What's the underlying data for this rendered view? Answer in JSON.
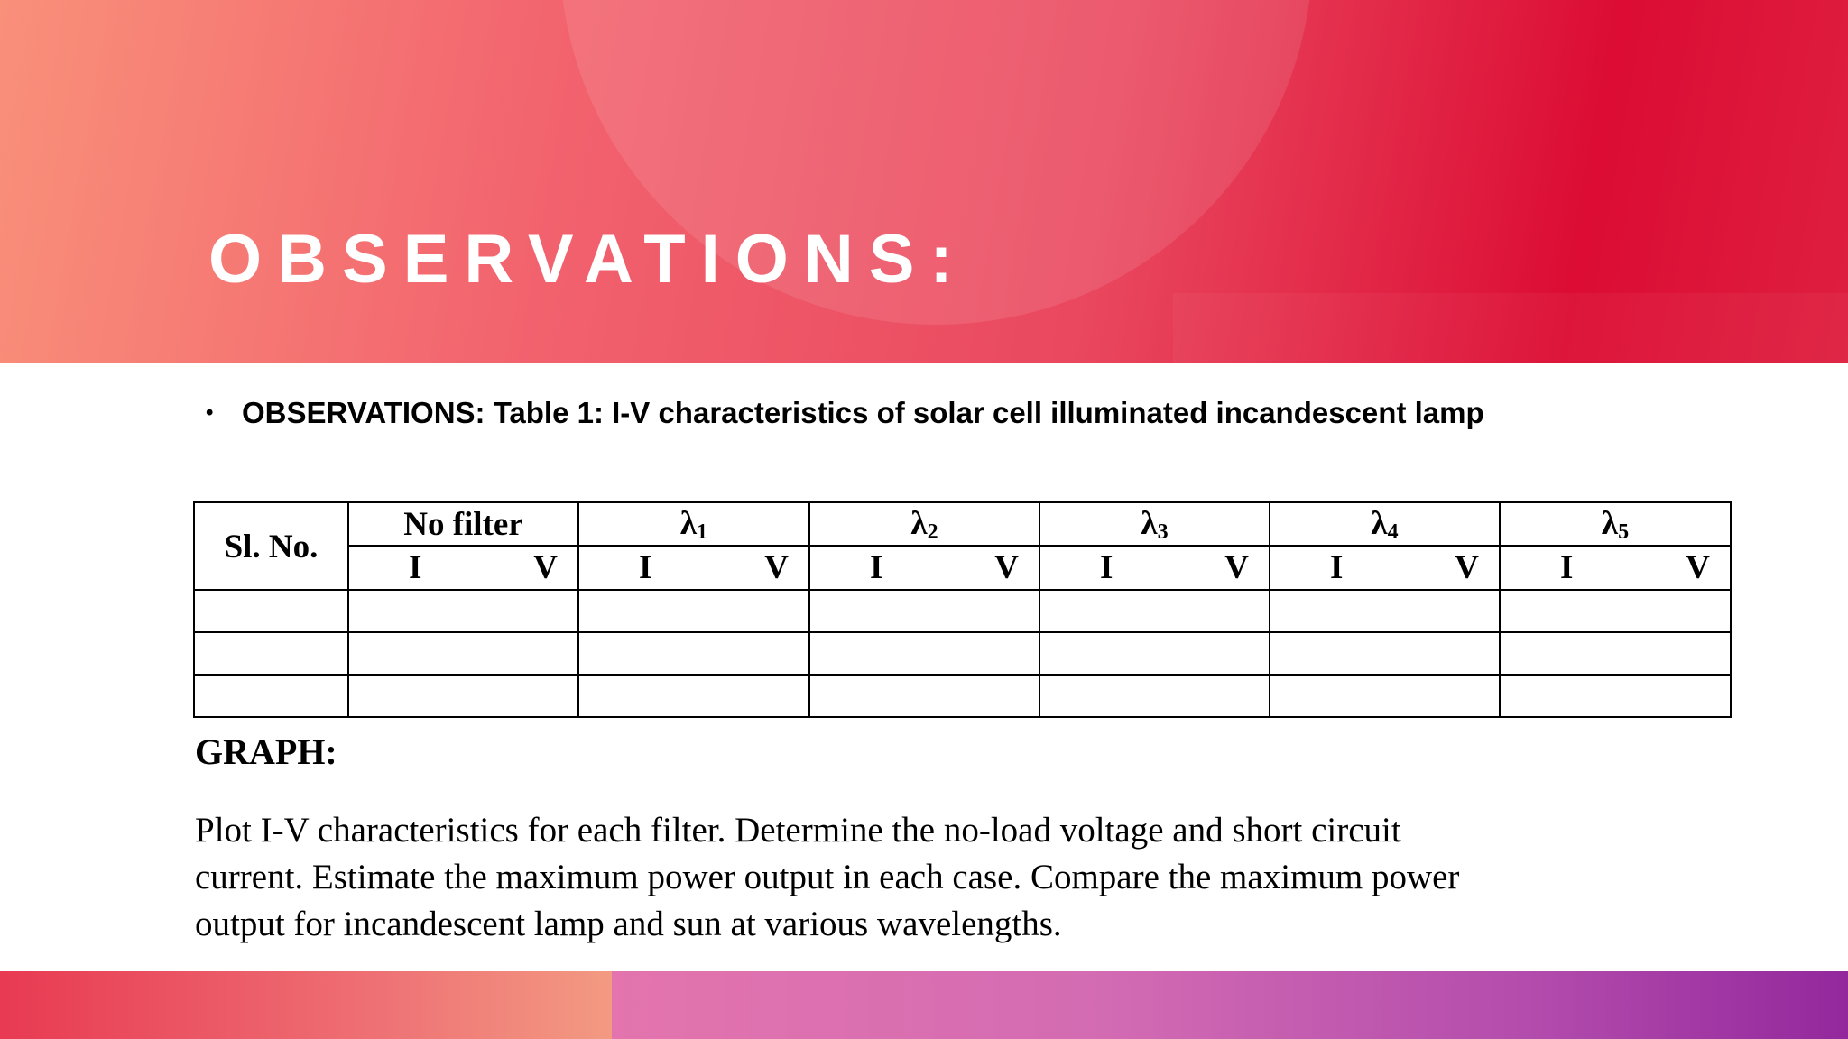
{
  "slide": {
    "title": "OBSERVATIONS:",
    "bullet": "OBSERVATIONS: Table 1: I-V characteristics of solar cell illuminated incandescent lamp"
  },
  "table": {
    "first_header": "Sl. No.",
    "groups": [
      {
        "label": "No filter",
        "sub": ""
      },
      {
        "label": "λ",
        "sub": "1"
      },
      {
        "label": "λ",
        "sub": "2"
      },
      {
        "label": "λ",
        "sub": "3"
      },
      {
        "label": "λ",
        "sub": "4"
      },
      {
        "label": "λ",
        "sub": "5"
      }
    ],
    "sub_headers": {
      "i": "I",
      "v": "V"
    },
    "empty_rows": 3
  },
  "graph": {
    "heading": "GRAPH:",
    "lines": [
      "Plot I-V characteristics for each filter. Determine the no-load voltage and short circuit",
      "current. Estimate the maximum power output in each case. Compare the maximum power",
      "output for incandescent lamp and sun at various wavelengths."
    ]
  },
  "theme": {
    "header_gradient": [
      "#f9907a",
      "#dc0c34"
    ],
    "footer_left": "#ee6f74",
    "footer_right": "#b24bac"
  }
}
